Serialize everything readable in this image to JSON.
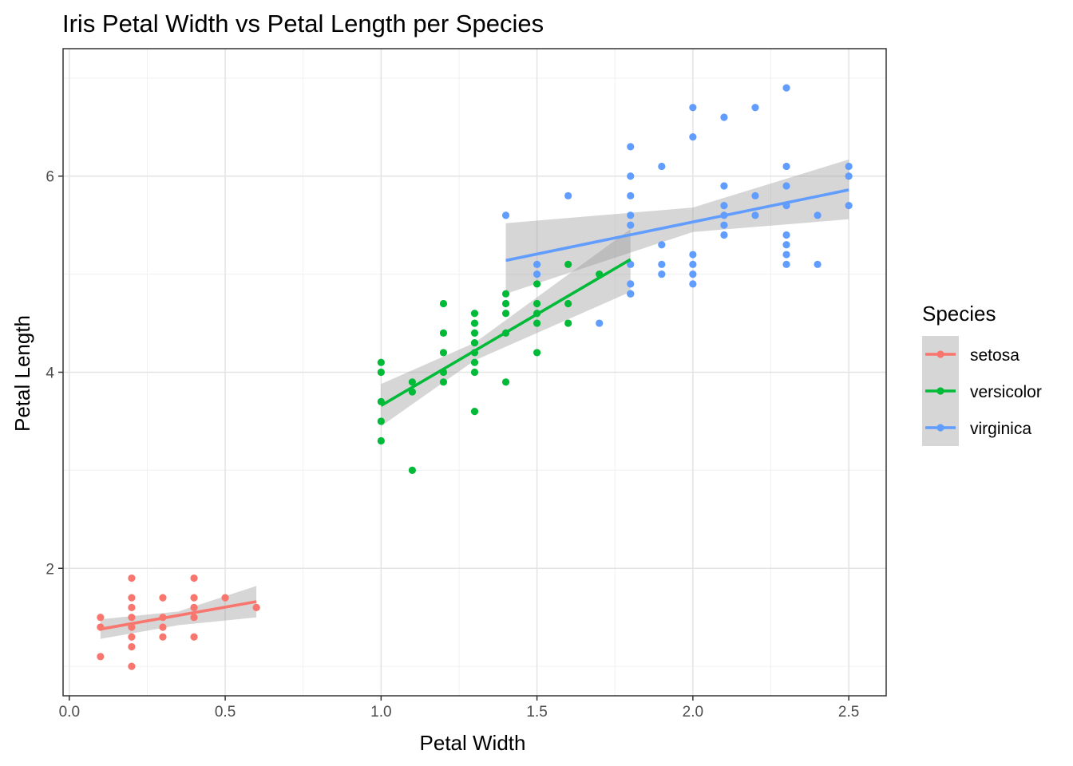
{
  "chart_data": {
    "type": "scatter",
    "title": "Iris Petal Width vs Petal Length per Species",
    "xlabel": "Petal Width",
    "ylabel": "Petal Length",
    "xlim": [
      -0.02,
      2.62
    ],
    "ylim": [
      0.7,
      7.3
    ],
    "xticks": [
      "0.0",
      "0.5",
      "1.0",
      "1.5",
      "2.0",
      "2.5"
    ],
    "yticks": [
      "2",
      "4",
      "6"
    ],
    "grid": true,
    "legend": {
      "title": "Species",
      "position": "right"
    },
    "series": [
      {
        "name": "setosa",
        "color": "#F8766D",
        "points": [
          [
            0.1,
            1.5
          ],
          [
            0.1,
            1.4
          ],
          [
            0.1,
            1.1
          ],
          [
            0.2,
            1.9
          ],
          [
            0.2,
            1.7
          ],
          [
            0.2,
            1.6
          ],
          [
            0.2,
            1.5
          ],
          [
            0.2,
            1.4
          ],
          [
            0.2,
            1.3
          ],
          [
            0.2,
            1.2
          ],
          [
            0.2,
            1.0
          ],
          [
            0.3,
            1.7
          ],
          [
            0.3,
            1.5
          ],
          [
            0.3,
            1.4
          ],
          [
            0.3,
            1.3
          ],
          [
            0.4,
            1.9
          ],
          [
            0.4,
            1.7
          ],
          [
            0.4,
            1.6
          ],
          [
            0.4,
            1.5
          ],
          [
            0.4,
            1.3
          ],
          [
            0.5,
            1.7
          ],
          [
            0.6,
            1.6
          ]
        ],
        "fit": {
          "x": [
            0.1,
            0.6
          ],
          "y": [
            1.38,
            1.66
          ]
        },
        "band": {
          "x": [
            0.1,
            0.35,
            0.6
          ],
          "lower": [
            1.28,
            1.42,
            1.5
          ],
          "upper": [
            1.48,
            1.56,
            1.82
          ]
        }
      },
      {
        "name": "versicolor",
        "color": "#00BA38",
        "points": [
          [
            1.0,
            4.1
          ],
          [
            1.0,
            4.0
          ],
          [
            1.0,
            3.7
          ],
          [
            1.0,
            3.5
          ],
          [
            1.0,
            3.3
          ],
          [
            1.1,
            3.9
          ],
          [
            1.1,
            3.8
          ],
          [
            1.1,
            3.0
          ],
          [
            1.2,
            4.7
          ],
          [
            1.2,
            4.4
          ],
          [
            1.2,
            4.2
          ],
          [
            1.2,
            4.0
          ],
          [
            1.2,
            3.9
          ],
          [
            1.3,
            4.6
          ],
          [
            1.3,
            4.5
          ],
          [
            1.3,
            4.4
          ],
          [
            1.3,
            4.3
          ],
          [
            1.3,
            4.2
          ],
          [
            1.3,
            4.1
          ],
          [
            1.3,
            4.0
          ],
          [
            1.3,
            3.6
          ],
          [
            1.4,
            4.8
          ],
          [
            1.4,
            4.7
          ],
          [
            1.4,
            4.6
          ],
          [
            1.4,
            4.4
          ],
          [
            1.4,
            3.9
          ],
          [
            1.5,
            4.9
          ],
          [
            1.5,
            4.7
          ],
          [
            1.5,
            4.6
          ],
          [
            1.5,
            4.5
          ],
          [
            1.5,
            4.2
          ],
          [
            1.6,
            5.1
          ],
          [
            1.6,
            4.7
          ],
          [
            1.6,
            4.5
          ],
          [
            1.7,
            5.0
          ],
          [
            1.8,
            4.8
          ]
        ],
        "fit": {
          "x": [
            1.0,
            1.8
          ],
          "y": [
            3.66,
            5.15
          ]
        },
        "band": {
          "x": [
            1.0,
            1.3,
            1.8
          ],
          "lower": [
            3.45,
            4.12,
            4.82
          ],
          "upper": [
            3.88,
            4.3,
            5.46
          ]
        }
      },
      {
        "name": "virginica",
        "color": "#619CFF",
        "points": [
          [
            1.4,
            5.6
          ],
          [
            1.5,
            5.1
          ],
          [
            1.5,
            5.0
          ],
          [
            1.6,
            5.8
          ],
          [
            1.7,
            4.5
          ],
          [
            1.8,
            6.3
          ],
          [
            1.8,
            6.0
          ],
          [
            1.8,
            5.8
          ],
          [
            1.8,
            5.6
          ],
          [
            1.8,
            5.5
          ],
          [
            1.8,
            5.1
          ],
          [
            1.8,
            4.9
          ],
          [
            1.8,
            4.8
          ],
          [
            1.9,
            6.1
          ],
          [
            1.9,
            5.3
          ],
          [
            1.9,
            5.1
          ],
          [
            1.9,
            5.0
          ],
          [
            2.0,
            6.7
          ],
          [
            2.0,
            6.4
          ],
          [
            2.0,
            5.2
          ],
          [
            2.0,
            5.1
          ],
          [
            2.0,
            5.0
          ],
          [
            2.0,
            4.9
          ],
          [
            2.1,
            6.6
          ],
          [
            2.1,
            5.9
          ],
          [
            2.1,
            5.7
          ],
          [
            2.1,
            5.6
          ],
          [
            2.1,
            5.5
          ],
          [
            2.1,
            5.4
          ],
          [
            2.2,
            6.7
          ],
          [
            2.2,
            5.8
          ],
          [
            2.2,
            5.6
          ],
          [
            2.3,
            6.9
          ],
          [
            2.3,
            6.1
          ],
          [
            2.3,
            5.9
          ],
          [
            2.3,
            5.7
          ],
          [
            2.3,
            5.4
          ],
          [
            2.3,
            5.3
          ],
          [
            2.3,
            5.2
          ],
          [
            2.3,
            5.1
          ],
          [
            2.4,
            5.6
          ],
          [
            2.4,
            5.1
          ],
          [
            2.5,
            6.1
          ],
          [
            2.5,
            6.0
          ],
          [
            2.5,
            5.7
          ]
        ],
        "fit": {
          "x": [
            1.4,
            2.5
          ],
          "y": [
            5.14,
            5.86
          ]
        },
        "band": {
          "x": [
            1.4,
            2.0,
            2.5
          ],
          "lower": [
            4.8,
            5.43,
            5.56
          ],
          "upper": [
            5.52,
            5.68,
            6.17
          ]
        }
      }
    ]
  }
}
